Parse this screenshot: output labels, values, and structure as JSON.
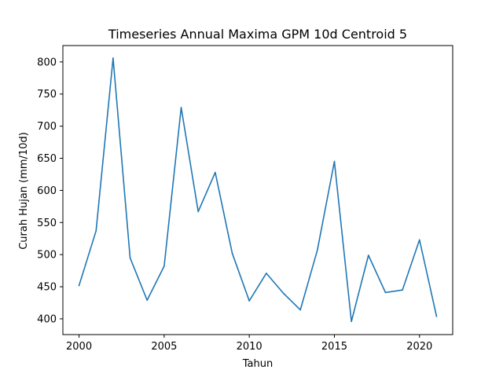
{
  "chart_data": {
    "type": "line",
    "title": "Timeseries Annual Maxima GPM 10d Centroid 5",
    "xlabel": "Tahun",
    "ylabel": "Curah Hujan (mm/10d)",
    "xlim": [
      1999.05,
      2021.95
    ],
    "ylim": [
      375.5,
      825.5
    ],
    "xticks": [
      2000,
      2005,
      2010,
      2015,
      2020
    ],
    "yticks": [
      400,
      450,
      500,
      550,
      600,
      650,
      700,
      750,
      800
    ],
    "grid": false,
    "series": [
      {
        "color": "#1f77b4",
        "x": [
          2000,
          2001,
          2002,
          2003,
          2004,
          2005,
          2006,
          2007,
          2008,
          2009,
          2010,
          2011,
          2012,
          2013,
          2014,
          2015,
          2016,
          2017,
          2018,
          2019,
          2020,
          2021
        ],
        "values": [
          452,
          537,
          806,
          495,
          429,
          482,
          729,
          567,
          628,
          502,
          428,
          471,
          440,
          414,
          507,
          645,
          396,
          499,
          441,
          445,
          523,
          404
        ]
      }
    ]
  }
}
